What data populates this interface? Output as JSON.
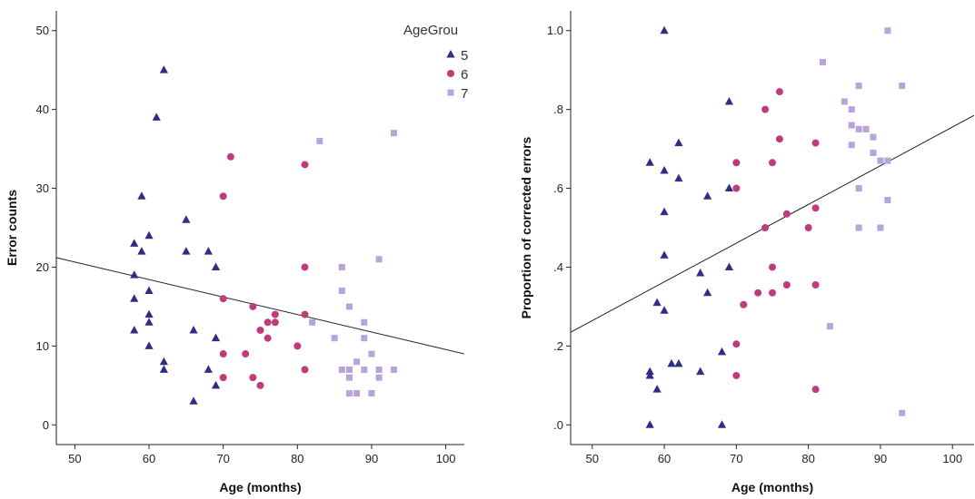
{
  "legend": {
    "title": "AgeGrou",
    "entries": [
      {
        "label": "5",
        "group": "5"
      },
      {
        "label": "6",
        "group": "6"
      },
      {
        "label": "7",
        "group": "7"
      }
    ]
  },
  "groups": {
    "5": {
      "color": "#2e2e84",
      "marker": "triangle"
    },
    "6": {
      "color": "#c03b7c",
      "marker": "circle"
    },
    "7": {
      "color": "#b8a3db",
      "marker": "square"
    }
  },
  "chart_data": [
    {
      "type": "scatter",
      "title": "",
      "xlabel": "Age (months)",
      "ylabel": "Error counts",
      "xlim": [
        47.5,
        102.5
      ],
      "ylim": [
        -2.5,
        52.5
      ],
      "xticks": [
        50,
        60,
        70,
        80,
        90,
        100
      ],
      "yticks": [
        0,
        10,
        20,
        30,
        40,
        50
      ],
      "ytick_labels": [
        "0",
        "10",
        "20",
        "30",
        "40",
        "50"
      ],
      "grid": false,
      "legend_position": "top-right",
      "fit_line": {
        "x": [
          47.5,
          102.5
        ],
        "y": [
          21.2,
          9.0
        ]
      },
      "series": [
        {
          "name": "5",
          "points": [
            [
              58,
              23
            ],
            [
              58,
              19
            ],
            [
              58,
              16
            ],
            [
              58,
              12
            ],
            [
              59,
              29
            ],
            [
              59,
              22
            ],
            [
              60,
              24
            ],
            [
              60,
              17
            ],
            [
              60,
              14
            ],
            [
              60,
              13
            ],
            [
              60,
              10
            ],
            [
              61,
              39
            ],
            [
              62,
              45
            ],
            [
              62,
              8
            ],
            [
              62,
              7
            ],
            [
              65,
              26
            ],
            [
              65,
              22
            ],
            [
              66,
              12
            ],
            [
              66,
              3
            ],
            [
              68,
              22
            ],
            [
              68,
              7
            ],
            [
              69,
              20
            ],
            [
              69,
              11
            ],
            [
              69,
              5
            ]
          ]
        },
        {
          "name": "6",
          "points": [
            [
              70,
              29
            ],
            [
              70,
              16
            ],
            [
              70,
              9
            ],
            [
              70,
              6
            ],
            [
              71,
              34
            ],
            [
              73,
              9
            ],
            [
              74,
              15
            ],
            [
              74,
              6
            ],
            [
              75,
              12
            ],
            [
              75,
              5
            ],
            [
              76,
              13
            ],
            [
              76,
              11
            ],
            [
              77,
              14
            ],
            [
              77,
              13
            ],
            [
              80,
              10
            ],
            [
              81,
              33
            ],
            [
              81,
              20
            ],
            [
              81,
              14
            ],
            [
              81,
              7
            ]
          ]
        },
        {
          "name": "7",
          "points": [
            [
              82,
              13
            ],
            [
              83,
              36
            ],
            [
              85,
              11
            ],
            [
              86,
              20
            ],
            [
              86,
              17
            ],
            [
              86,
              7
            ],
            [
              87,
              15
            ],
            [
              87,
              7
            ],
            [
              87,
              6
            ],
            [
              87,
              4
            ],
            [
              88,
              8
            ],
            [
              88,
              4
            ],
            [
              89,
              13
            ],
            [
              89,
              11
            ],
            [
              89,
              7
            ],
            [
              90,
              9
            ],
            [
              90,
              4
            ],
            [
              91,
              21
            ],
            [
              91,
              7
            ],
            [
              91,
              6
            ],
            [
              93,
              37
            ],
            [
              93,
              7
            ]
          ]
        }
      ]
    },
    {
      "type": "scatter",
      "title": "",
      "xlabel": "Age (months)",
      "ylabel": "Proportion of corrected errors",
      "xlim": [
        47,
        103
      ],
      "ylim": [
        -0.05,
        1.05
      ],
      "xticks": [
        50,
        60,
        70,
        80,
        90,
        100
      ],
      "yticks": [
        0,
        0.2,
        0.4,
        0.6,
        0.8,
        1.0
      ],
      "ytick_labels": [
        ".0",
        ".2",
        ".4",
        ".6",
        ".8",
        "1.0"
      ],
      "grid": false,
      "fit_line": {
        "x": [
          47,
          103
        ],
        "y": [
          0.235,
          0.785
        ]
      },
      "series": [
        {
          "name": "5",
          "points": [
            [
              58,
              0.665
            ],
            [
              58,
              0.135
            ],
            [
              58,
              0.125
            ],
            [
              58,
              0.0
            ],
            [
              59,
              0.31
            ],
            [
              59,
              0.09
            ],
            [
              60,
              1.0
            ],
            [
              60,
              0.645
            ],
            [
              60,
              0.54
            ],
            [
              60,
              0.43
            ],
            [
              60,
              0.29
            ],
            [
              61,
              0.155
            ],
            [
              62,
              0.715
            ],
            [
              62,
              0.625
            ],
            [
              62,
              0.155
            ],
            [
              65,
              0.385
            ],
            [
              65,
              0.135
            ],
            [
              66,
              0.58
            ],
            [
              66,
              0.335
            ],
            [
              68,
              0.185
            ],
            [
              68,
              0.0
            ],
            [
              69,
              0.82
            ],
            [
              69,
              0.6
            ],
            [
              69,
              0.4
            ]
          ]
        },
        {
          "name": "6",
          "points": [
            [
              70,
              0.665
            ],
            [
              70,
              0.6
            ],
            [
              70,
              0.205
            ],
            [
              70,
              0.125
            ],
            [
              71,
              0.305
            ],
            [
              73,
              0.335
            ],
            [
              74,
              0.8
            ],
            [
              74,
              0.5
            ],
            [
              75,
              0.665
            ],
            [
              75,
              0.4
            ],
            [
              75,
              0.335
            ],
            [
              76,
              0.845
            ],
            [
              76,
              0.725
            ],
            [
              77,
              0.535
            ],
            [
              77,
              0.355
            ],
            [
              80,
              0.5
            ],
            [
              81,
              0.715
            ],
            [
              81,
              0.55
            ],
            [
              81,
              0.355
            ],
            [
              81,
              0.09
            ]
          ]
        },
        {
          "name": "7",
          "points": [
            [
              82,
              0.92
            ],
            [
              83,
              0.25
            ],
            [
              85,
              0.82
            ],
            [
              86,
              0.8
            ],
            [
              86,
              0.76
            ],
            [
              86,
              0.71
            ],
            [
              87,
              0.86
            ],
            [
              87,
              0.75
            ],
            [
              87,
              0.6
            ],
            [
              87,
              0.5
            ],
            [
              88,
              0.75
            ],
            [
              89,
              0.73
            ],
            [
              89,
              0.69
            ],
            [
              90,
              0.67
            ],
            [
              90,
              0.5
            ],
            [
              91,
              1.0
            ],
            [
              91,
              0.67
            ],
            [
              91,
              0.57
            ],
            [
              93,
              0.86
            ],
            [
              93,
              0.03
            ]
          ]
        }
      ]
    }
  ]
}
